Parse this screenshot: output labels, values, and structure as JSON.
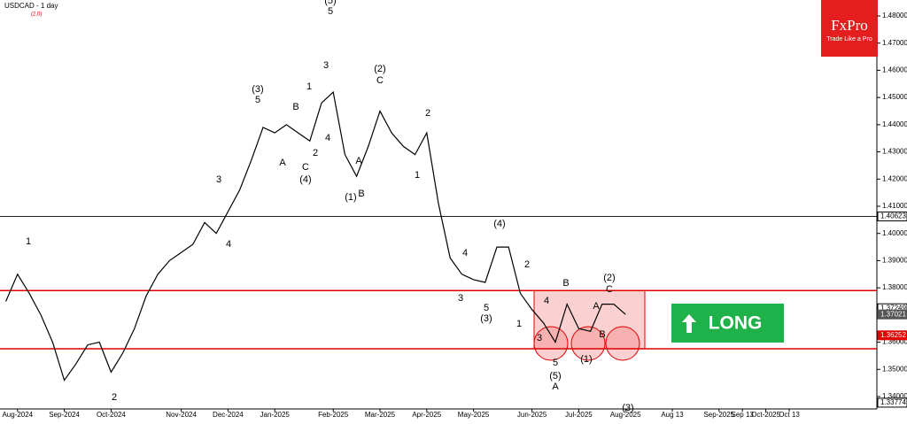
{
  "chart_data": {
    "type": "line",
    "title": "USDCAD - 1 day",
    "indicator": "(2,0)",
    "logo": {
      "name": "FxPro",
      "tagline": "Trade Like a Pro"
    },
    "signal": "LONG",
    "color": "#000000",
    "categories": [
      null,
      "Aug-2024",
      null,
      null,
      null,
      "Sep-2024",
      null,
      null,
      null,
      "Oct-2024",
      null,
      null,
      null,
      null,
      null,
      "Nov-2024",
      null,
      null,
      null,
      "Dec-2024",
      null,
      null,
      null,
      "Jan-2025",
      null,
      null,
      null,
      null,
      "Feb-2025",
      null,
      null,
      null,
      "Mar-2025",
      null,
      null,
      null,
      "Apr-2025",
      null,
      null,
      null,
      "May-2025",
      null,
      null,
      null,
      null,
      "Jun-2025",
      null,
      null,
      null,
      "Jul-2025",
      null,
      null,
      null,
      "Aug-2025",
      null,
      null,
      null,
      "Aug 13",
      null,
      null,
      null,
      "Sep-2025",
      null,
      "Sep 13",
      null,
      "Oct-2025",
      null,
      "Oct 13",
      null,
      null,
      null,
      null,
      null,
      null,
      null
    ],
    "values": [
      1.375,
      1.385,
      1.378,
      1.37,
      1.36,
      1.346,
      1.352,
      1.359,
      1.36,
      1.349,
      1.356,
      1.365,
      1.377,
      1.385,
      1.39,
      1.393,
      1.396,
      1.404,
      1.4,
      1.408,
      1.416,
      1.427,
      1.439,
      1.437,
      1.44,
      1.437,
      1.434,
      1.448,
      1.452,
      1.429,
      1.421,
      1.432,
      1.445,
      1.437,
      1.432,
      1.429,
      1.437,
      1.411,
      1.391,
      1.385,
      1.383,
      1.382,
      1.395,
      1.395,
      1.378,
      1.372,
      1.367,
      1.36,
      1.374,
      1.365,
      1.364,
      1.374,
      1.374,
      1.37021,
      null,
      null,
      null,
      null,
      null,
      null,
      null,
      null,
      null,
      null,
      null,
      null,
      null,
      null,
      null,
      null,
      null,
      null,
      null,
      null,
      null
    ],
    "ylim": [
      1.33544,
      1.48586
    ],
    "yticks": [
      {
        "value": 1.48,
        "label": "1.48000"
      },
      {
        "value": 1.47,
        "label": "1.47000"
      },
      {
        "value": 1.46,
        "label": "1.46000"
      },
      {
        "value": 1.45,
        "label": "1.45000"
      },
      {
        "value": 1.44,
        "label": "1.44000"
      },
      {
        "value": 1.43,
        "label": "1.43000"
      },
      {
        "value": 1.42,
        "label": "1.42000"
      },
      {
        "value": 1.41,
        "label": "1.41000"
      },
      {
        "value": 1.4,
        "label": "1.40000"
      },
      {
        "value": 1.39,
        "label": "1.39000"
      },
      {
        "value": 1.38,
        "label": "1.38000"
      },
      {
        "value": 1.36,
        "label": "1.36000"
      },
      {
        "value": 1.35,
        "label": "1.35000"
      },
      {
        "value": 1.34,
        "label": "1.34000"
      }
    ],
    "price_labels": [
      {
        "value": 1.40623,
        "color": "#000000"
      },
      {
        "value": 1.37249,
        "color": "#000000"
      },
      {
        "value": 1.37021,
        "color": "#555555"
      },
      {
        "value": 1.36252,
        "color": "#e00000"
      },
      {
        "value": 1.33774,
        "color": "#000000"
      }
    ],
    "levels": [
      {
        "value": 1.40623,
        "color": "#000000"
      },
      {
        "value": 1.379,
        "color": "#e00000"
      },
      {
        "value": 1.3576,
        "color": "#e00000"
      }
    ],
    "annotations": [
      "1",
      "2",
      "(3)",
      "5",
      "3",
      "4",
      "A",
      "B",
      "1",
      "C",
      "(4)",
      "2",
      "4",
      "3",
      "5",
      "(5)",
      "(2)",
      "C",
      "2",
      "A",
      "B",
      "(1)",
      "1",
      "(4)",
      "4",
      "3",
      "5",
      "(3)",
      "2",
      "1",
      "B",
      "(2)",
      "C",
      "4",
      "A",
      "3",
      "B",
      "5",
      "(5)",
      "A",
      "(1)",
      "(3)"
    ]
  }
}
